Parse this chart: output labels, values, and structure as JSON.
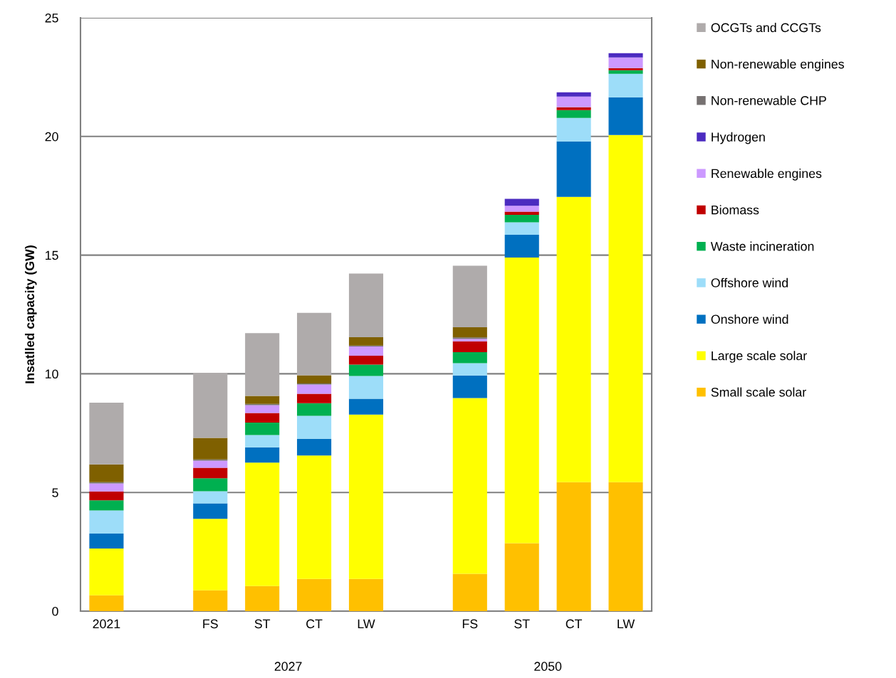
{
  "chart_data": {
    "type": "bar",
    "stacked": true,
    "ylabel": "Insatlled capacity (GW)",
    "categories": [
      "2021",
      null,
      "FS",
      "ST",
      "CT",
      "LW",
      null,
      "FS",
      "ST",
      "CT",
      "LW"
    ],
    "series": [
      {
        "name": "Small scale solar",
        "color": "#ffc000",
        "values": [
          0.67,
          null,
          0.88,
          1.06,
          1.36,
          1.36,
          null,
          1.57,
          2.86,
          5.43,
          5.43
        ]
      },
      {
        "name": "Large scale solar",
        "color": "#ffff00",
        "values": [
          1.97,
          null,
          3.01,
          5.2,
          5.2,
          6.92,
          null,
          7.41,
          12.04,
          12.02,
          14.63
        ]
      },
      {
        "name": "Onshore wind",
        "color": "#0070c0",
        "values": [
          0.63,
          null,
          0.65,
          0.64,
          0.7,
          0.67,
          null,
          0.95,
          0.96,
          2.34,
          1.59
        ]
      },
      {
        "name": "Offshore wind",
        "color": "#9dddf9",
        "values": [
          0.97,
          null,
          0.51,
          0.52,
          0.97,
          0.96,
          null,
          0.52,
          0.52,
          0.99,
          0.99
        ]
      },
      {
        "name": "Waste incineration",
        "color": "#00b050",
        "values": [
          0.43,
          null,
          0.55,
          0.52,
          0.53,
          0.48,
          null,
          0.46,
          0.32,
          0.33,
          0.15
        ]
      },
      {
        "name": "Biomass",
        "color": "#c00000",
        "values": [
          0.37,
          null,
          0.44,
          0.41,
          0.4,
          0.37,
          null,
          0.46,
          0.13,
          0.12,
          0.09
        ]
      },
      {
        "name": "Renewable engines",
        "color": "#cc99ff",
        "values": [
          0.34,
          null,
          0.3,
          0.33,
          0.39,
          0.39,
          null,
          0.1,
          0.25,
          0.45,
          0.45
        ]
      },
      {
        "name": "Hydrogen",
        "color": "#4b2bc0",
        "values": [
          0,
          null,
          0,
          0,
          0,
          0,
          null,
          0,
          0.29,
          0.18,
          0.18
        ]
      },
      {
        "name": "Non-renewable CHP",
        "color": "#767171",
        "values": [
          0.05,
          null,
          0.05,
          0.05,
          0.04,
          0.04,
          null,
          0.06,
          0,
          0,
          0
        ]
      },
      {
        "name": "Non-renewable engines",
        "color": "#7f6000",
        "values": [
          0.75,
          null,
          0.91,
          0.34,
          0.35,
          0.35,
          null,
          0.43,
          0,
          0,
          0
        ]
      },
      {
        "name": "OCGTs and CCGTs",
        "color": "#afabab",
        "values": [
          2.6,
          null,
          2.74,
          2.64,
          2.63,
          2.68,
          null,
          2.59,
          0,
          0,
          0
        ]
      }
    ],
    "ylim": [
      0,
      25
    ],
    "yticks": [
      0,
      5,
      10,
      15,
      20,
      25
    ],
    "grid": "y",
    "legend": "right",
    "annotations": [
      "2027",
      "2050"
    ]
  }
}
